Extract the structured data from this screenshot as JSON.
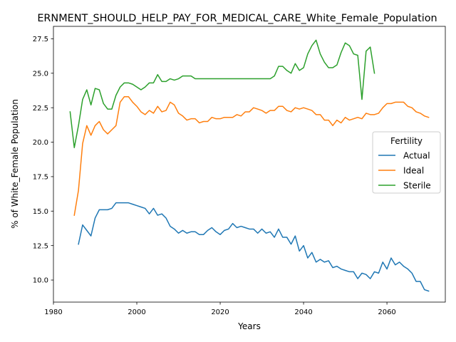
{
  "chart_data": {
    "type": "line",
    "title": "ERNMENT_SHOULD_HELP_PAY_FOR_MEDICAL_CARE_White_Female_Population",
    "xlabel": "Years",
    "ylabel": "% of White_Female Population",
    "xlim": [
      1980,
      2074
    ],
    "ylim": [
      8.4,
      28.4
    ],
    "xticks": [
      1980,
      2000,
      2020,
      2040,
      2060
    ],
    "xtick_labels": [
      "1980",
      "2000",
      "2020",
      "2040",
      "2060"
    ],
    "yticks": [
      10.0,
      12.5,
      15.0,
      17.5,
      20.0,
      22.5,
      25.0,
      27.5
    ],
    "ytick_labels": [
      "10.0",
      "12.5",
      "15.0",
      "17.5",
      "20.0",
      "22.5",
      "25.0",
      "27.5"
    ],
    "grid": false,
    "legend": {
      "title": "Fertility",
      "placement": "center-right"
    },
    "series": [
      {
        "name": "Actual",
        "color": "#1f77b4",
        "points": [
          [
            1986,
            12.6
          ],
          [
            1987,
            14.0
          ],
          [
            1988,
            13.6
          ],
          [
            1989,
            13.2
          ],
          [
            1990,
            14.5
          ],
          [
            1991,
            15.1
          ],
          [
            1992,
            15.1
          ],
          [
            1993,
            15.1
          ],
          [
            1994,
            15.2
          ],
          [
            1995,
            15.6
          ],
          [
            1996,
            15.6
          ],
          [
            1997,
            15.6
          ],
          [
            1998,
            15.6
          ],
          [
            1999,
            15.5
          ],
          [
            2000,
            15.4
          ],
          [
            2001,
            15.3
          ],
          [
            2002,
            15.2
          ],
          [
            2003,
            14.8
          ],
          [
            2004,
            15.2
          ],
          [
            2005,
            14.7
          ],
          [
            2006,
            14.8
          ],
          [
            2007,
            14.5
          ],
          [
            2008,
            13.9
          ],
          [
            2009,
            13.7
          ],
          [
            2010,
            13.4
          ],
          [
            2011,
            13.6
          ],
          [
            2012,
            13.4
          ],
          [
            2013,
            13.5
          ],
          [
            2014,
            13.5
          ],
          [
            2015,
            13.3
          ],
          [
            2016,
            13.3
          ],
          [
            2017,
            13.6
          ],
          [
            2018,
            13.8
          ],
          [
            2019,
            13.5
          ],
          [
            2020,
            13.3
          ],
          [
            2021,
            13.6
          ],
          [
            2022,
            13.7
          ],
          [
            2023,
            14.1
          ],
          [
            2024,
            13.8
          ],
          [
            2025,
            13.9
          ],
          [
            2026,
            13.8
          ],
          [
            2027,
            13.7
          ],
          [
            2028,
            13.7
          ],
          [
            2029,
            13.4
          ],
          [
            2030,
            13.7
          ],
          [
            2031,
            13.4
          ],
          [
            2032,
            13.5
          ],
          [
            2033,
            13.1
          ],
          [
            2034,
            13.7
          ],
          [
            2035,
            13.1
          ],
          [
            2036,
            13.1
          ],
          [
            2037,
            12.6
          ],
          [
            2038,
            13.2
          ],
          [
            2039,
            12.1
          ],
          [
            2040,
            12.5
          ],
          [
            2041,
            11.6
          ],
          [
            2042,
            12.0
          ],
          [
            2043,
            11.3
          ],
          [
            2044,
            11.5
          ],
          [
            2045,
            11.3
          ],
          [
            2046,
            11.4
          ],
          [
            2047,
            10.9
          ],
          [
            2048,
            11.0
          ],
          [
            2049,
            10.8
          ],
          [
            2050,
            10.7
          ],
          [
            2051,
            10.6
          ],
          [
            2052,
            10.6
          ],
          [
            2053,
            10.1
          ],
          [
            2054,
            10.5
          ],
          [
            2055,
            10.4
          ],
          [
            2056,
            10.1
          ],
          [
            2057,
            10.6
          ],
          [
            2058,
            10.5
          ],
          [
            2059,
            11.3
          ],
          [
            2060,
            10.8
          ],
          [
            2061,
            11.6
          ],
          [
            2062,
            11.1
          ],
          [
            2063,
            11.3
          ],
          [
            2064,
            11.0
          ],
          [
            2065,
            10.8
          ],
          [
            2066,
            10.5
          ],
          [
            2067,
            9.9
          ],
          [
            2068,
            9.9
          ],
          [
            2069,
            9.3
          ],
          [
            2070,
            9.2
          ]
        ]
      },
      {
        "name": "Ideal",
        "color": "#ff7f0e",
        "points": [
          [
            1985,
            14.7
          ],
          [
            1986,
            16.5
          ],
          [
            1987,
            19.9
          ],
          [
            1988,
            21.2
          ],
          [
            1989,
            20.5
          ],
          [
            1990,
            21.2
          ],
          [
            1991,
            21.5
          ],
          [
            1992,
            20.9
          ],
          [
            1993,
            20.6
          ],
          [
            1994,
            20.9
          ],
          [
            1995,
            21.2
          ],
          [
            1996,
            22.9
          ],
          [
            1997,
            23.3
          ],
          [
            1998,
            23.3
          ],
          [
            1999,
            22.9
          ],
          [
            2000,
            22.6
          ],
          [
            2001,
            22.2
          ],
          [
            2002,
            22.0
          ],
          [
            2003,
            22.3
          ],
          [
            2004,
            22.1
          ],
          [
            2005,
            22.6
          ],
          [
            2006,
            22.2
          ],
          [
            2007,
            22.3
          ],
          [
            2008,
            22.9
          ],
          [
            2009,
            22.7
          ],
          [
            2010,
            22.1
          ],
          [
            2011,
            21.9
          ],
          [
            2012,
            21.6
          ],
          [
            2013,
            21.7
          ],
          [
            2014,
            21.7
          ],
          [
            2015,
            21.4
          ],
          [
            2016,
            21.5
          ],
          [
            2017,
            21.5
          ],
          [
            2018,
            21.8
          ],
          [
            2019,
            21.7
          ],
          [
            2020,
            21.7
          ],
          [
            2021,
            21.8
          ],
          [
            2022,
            21.8
          ],
          [
            2023,
            21.8
          ],
          [
            2024,
            22.0
          ],
          [
            2025,
            21.9
          ],
          [
            2026,
            22.2
          ],
          [
            2027,
            22.2
          ],
          [
            2028,
            22.5
          ],
          [
            2029,
            22.4
          ],
          [
            2030,
            22.3
          ],
          [
            2031,
            22.1
          ],
          [
            2032,
            22.3
          ],
          [
            2033,
            22.3
          ],
          [
            2034,
            22.6
          ],
          [
            2035,
            22.6
          ],
          [
            2036,
            22.3
          ],
          [
            2037,
            22.2
          ],
          [
            2038,
            22.5
          ],
          [
            2039,
            22.4
          ],
          [
            2040,
            22.5
          ],
          [
            2041,
            22.4
          ],
          [
            2042,
            22.3
          ],
          [
            2043,
            22.0
          ],
          [
            2044,
            22.0
          ],
          [
            2045,
            21.6
          ],
          [
            2046,
            21.6
          ],
          [
            2047,
            21.2
          ],
          [
            2048,
            21.6
          ],
          [
            2049,
            21.4
          ],
          [
            2050,
            21.8
          ],
          [
            2051,
            21.6
          ],
          [
            2052,
            21.7
          ],
          [
            2053,
            21.8
          ],
          [
            2054,
            21.7
          ],
          [
            2055,
            22.1
          ],
          [
            2056,
            22.0
          ],
          [
            2057,
            22.0
          ],
          [
            2058,
            22.1
          ],
          [
            2059,
            22.5
          ],
          [
            2060,
            22.8
          ],
          [
            2061,
            22.8
          ],
          [
            2062,
            22.9
          ],
          [
            2063,
            22.9
          ],
          [
            2064,
            22.9
          ],
          [
            2065,
            22.6
          ],
          [
            2066,
            22.5
          ],
          [
            2067,
            22.2
          ],
          [
            2068,
            22.1
          ],
          [
            2069,
            21.9
          ],
          [
            2070,
            21.8
          ]
        ]
      },
      {
        "name": "Sterile",
        "color": "#2ca02c",
        "points": [
          [
            1984,
            22.2
          ],
          [
            1985,
            19.6
          ],
          [
            1986,
            21.2
          ],
          [
            1987,
            23.1
          ],
          [
            1988,
            23.8
          ],
          [
            1989,
            22.7
          ],
          [
            1990,
            23.9
          ],
          [
            1991,
            23.8
          ],
          [
            1992,
            22.8
          ],
          [
            1993,
            22.4
          ],
          [
            1994,
            22.4
          ],
          [
            1995,
            23.4
          ],
          [
            1996,
            24.0
          ],
          [
            1997,
            24.3
          ],
          [
            1998,
            24.3
          ],
          [
            1999,
            24.2
          ],
          [
            2000,
            24.0
          ],
          [
            2001,
            23.8
          ],
          [
            2002,
            24.0
          ],
          [
            2003,
            24.3
          ],
          [
            2004,
            24.3
          ],
          [
            2005,
            24.9
          ],
          [
            2006,
            24.4
          ],
          [
            2007,
            24.4
          ],
          [
            2008,
            24.6
          ],
          [
            2009,
            24.5
          ],
          [
            2010,
            24.6
          ],
          [
            2011,
            24.8
          ],
          [
            2012,
            24.8
          ],
          [
            2013,
            24.8
          ],
          [
            2014,
            24.6
          ],
          [
            2015,
            24.6
          ],
          [
            2016,
            24.6
          ],
          [
            2017,
            24.6
          ],
          [
            2018,
            24.6
          ],
          [
            2019,
            24.6
          ],
          [
            2020,
            24.6
          ],
          [
            2021,
            24.6
          ],
          [
            2022,
            24.6
          ],
          [
            2023,
            24.6
          ],
          [
            2024,
            24.6
          ],
          [
            2025,
            24.6
          ],
          [
            2026,
            24.6
          ],
          [
            2027,
            24.6
          ],
          [
            2028,
            24.6
          ],
          [
            2029,
            24.6
          ],
          [
            2030,
            24.6
          ],
          [
            2031,
            24.6
          ],
          [
            2032,
            24.6
          ],
          [
            2033,
            24.8
          ],
          [
            2034,
            25.5
          ],
          [
            2035,
            25.5
          ],
          [
            2036,
            25.2
          ],
          [
            2037,
            25.0
          ],
          [
            2038,
            25.7
          ],
          [
            2039,
            25.2
          ],
          [
            2040,
            25.4
          ],
          [
            2041,
            26.4
          ],
          [
            2042,
            27.0
          ],
          [
            2043,
            27.4
          ],
          [
            2044,
            26.4
          ],
          [
            2045,
            25.8
          ],
          [
            2046,
            25.4
          ],
          [
            2047,
            25.4
          ],
          [
            2048,
            25.6
          ],
          [
            2049,
            26.5
          ],
          [
            2050,
            27.2
          ],
          [
            2051,
            27.0
          ],
          [
            2052,
            26.4
          ],
          [
            2053,
            26.3
          ],
          [
            2054,
            23.1
          ],
          [
            2055,
            26.6
          ],
          [
            2056,
            26.9
          ],
          [
            2057,
            25.0
          ]
        ]
      }
    ]
  }
}
